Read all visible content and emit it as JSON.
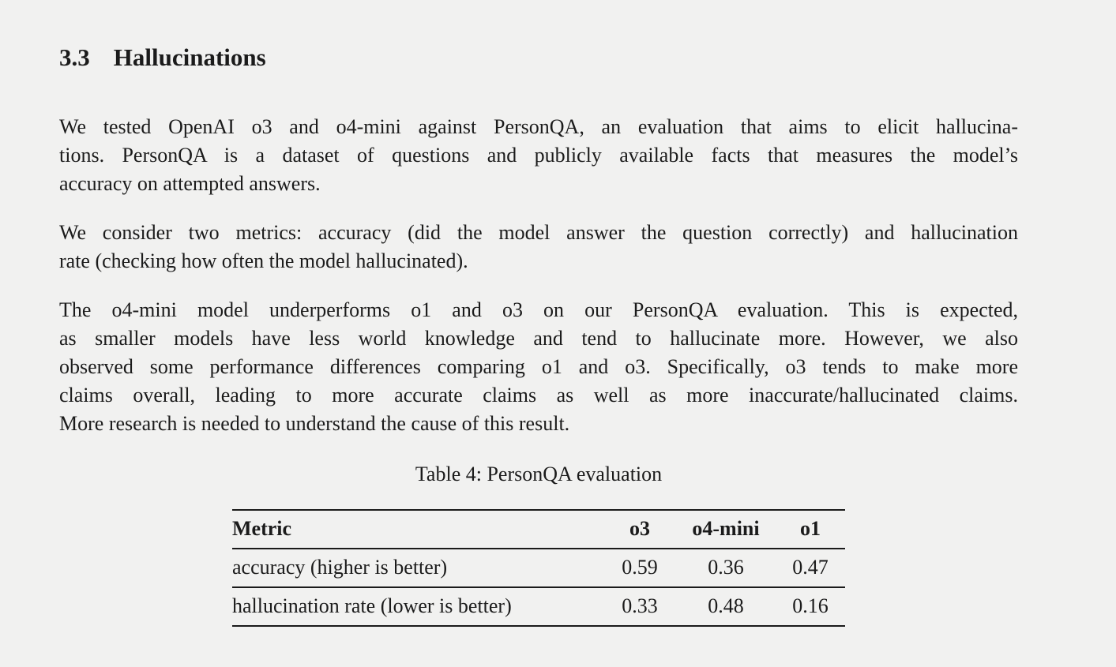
{
  "colors": {
    "background": "#f1f1f0",
    "text": "#1b1b1b",
    "table_rule": "#1a1a1a"
  },
  "section": {
    "number": "3.3",
    "title": "Hallucinations"
  },
  "paragraphs": [
    {
      "lines": [
        "We tested OpenAI o3 and o4-mini against PersonQA, an evaluation that aims to elicit hallucina-",
        "tions. PersonQA is a dataset of questions and publicly available facts that measures the model’s",
        "accuracy on attempted answers."
      ]
    },
    {
      "lines": [
        "We consider two metrics: accuracy (did the model answer the question correctly) and hallucination",
        "rate (checking how often the model hallucinated)."
      ]
    },
    {
      "lines": [
        "The o4-mini model underperforms o1 and o3 on our PersonQA evaluation. This is expected,",
        "as smaller models have less world knowledge and tend to hallucinate more. However, we also",
        "observed some performance differences comparing o1 and o3. Specifically, o3 tends to make more",
        "claims overall, leading to more accurate claims as well as more inaccurate/hallucinated claims.",
        "More research is needed to understand the cause of this result."
      ]
    }
  ],
  "table": {
    "caption": "Table 4: PersonQA evaluation",
    "columns": [
      "Metric",
      "o3",
      "o4-mini",
      "o1"
    ],
    "rows": [
      {
        "label": "accuracy (higher is better)",
        "values": [
          "0.59",
          "0.36",
          "0.47"
        ]
      },
      {
        "label": "hallucination rate (lower is better)",
        "values": [
          "0.33",
          "0.48",
          "0.16"
        ]
      }
    ]
  }
}
